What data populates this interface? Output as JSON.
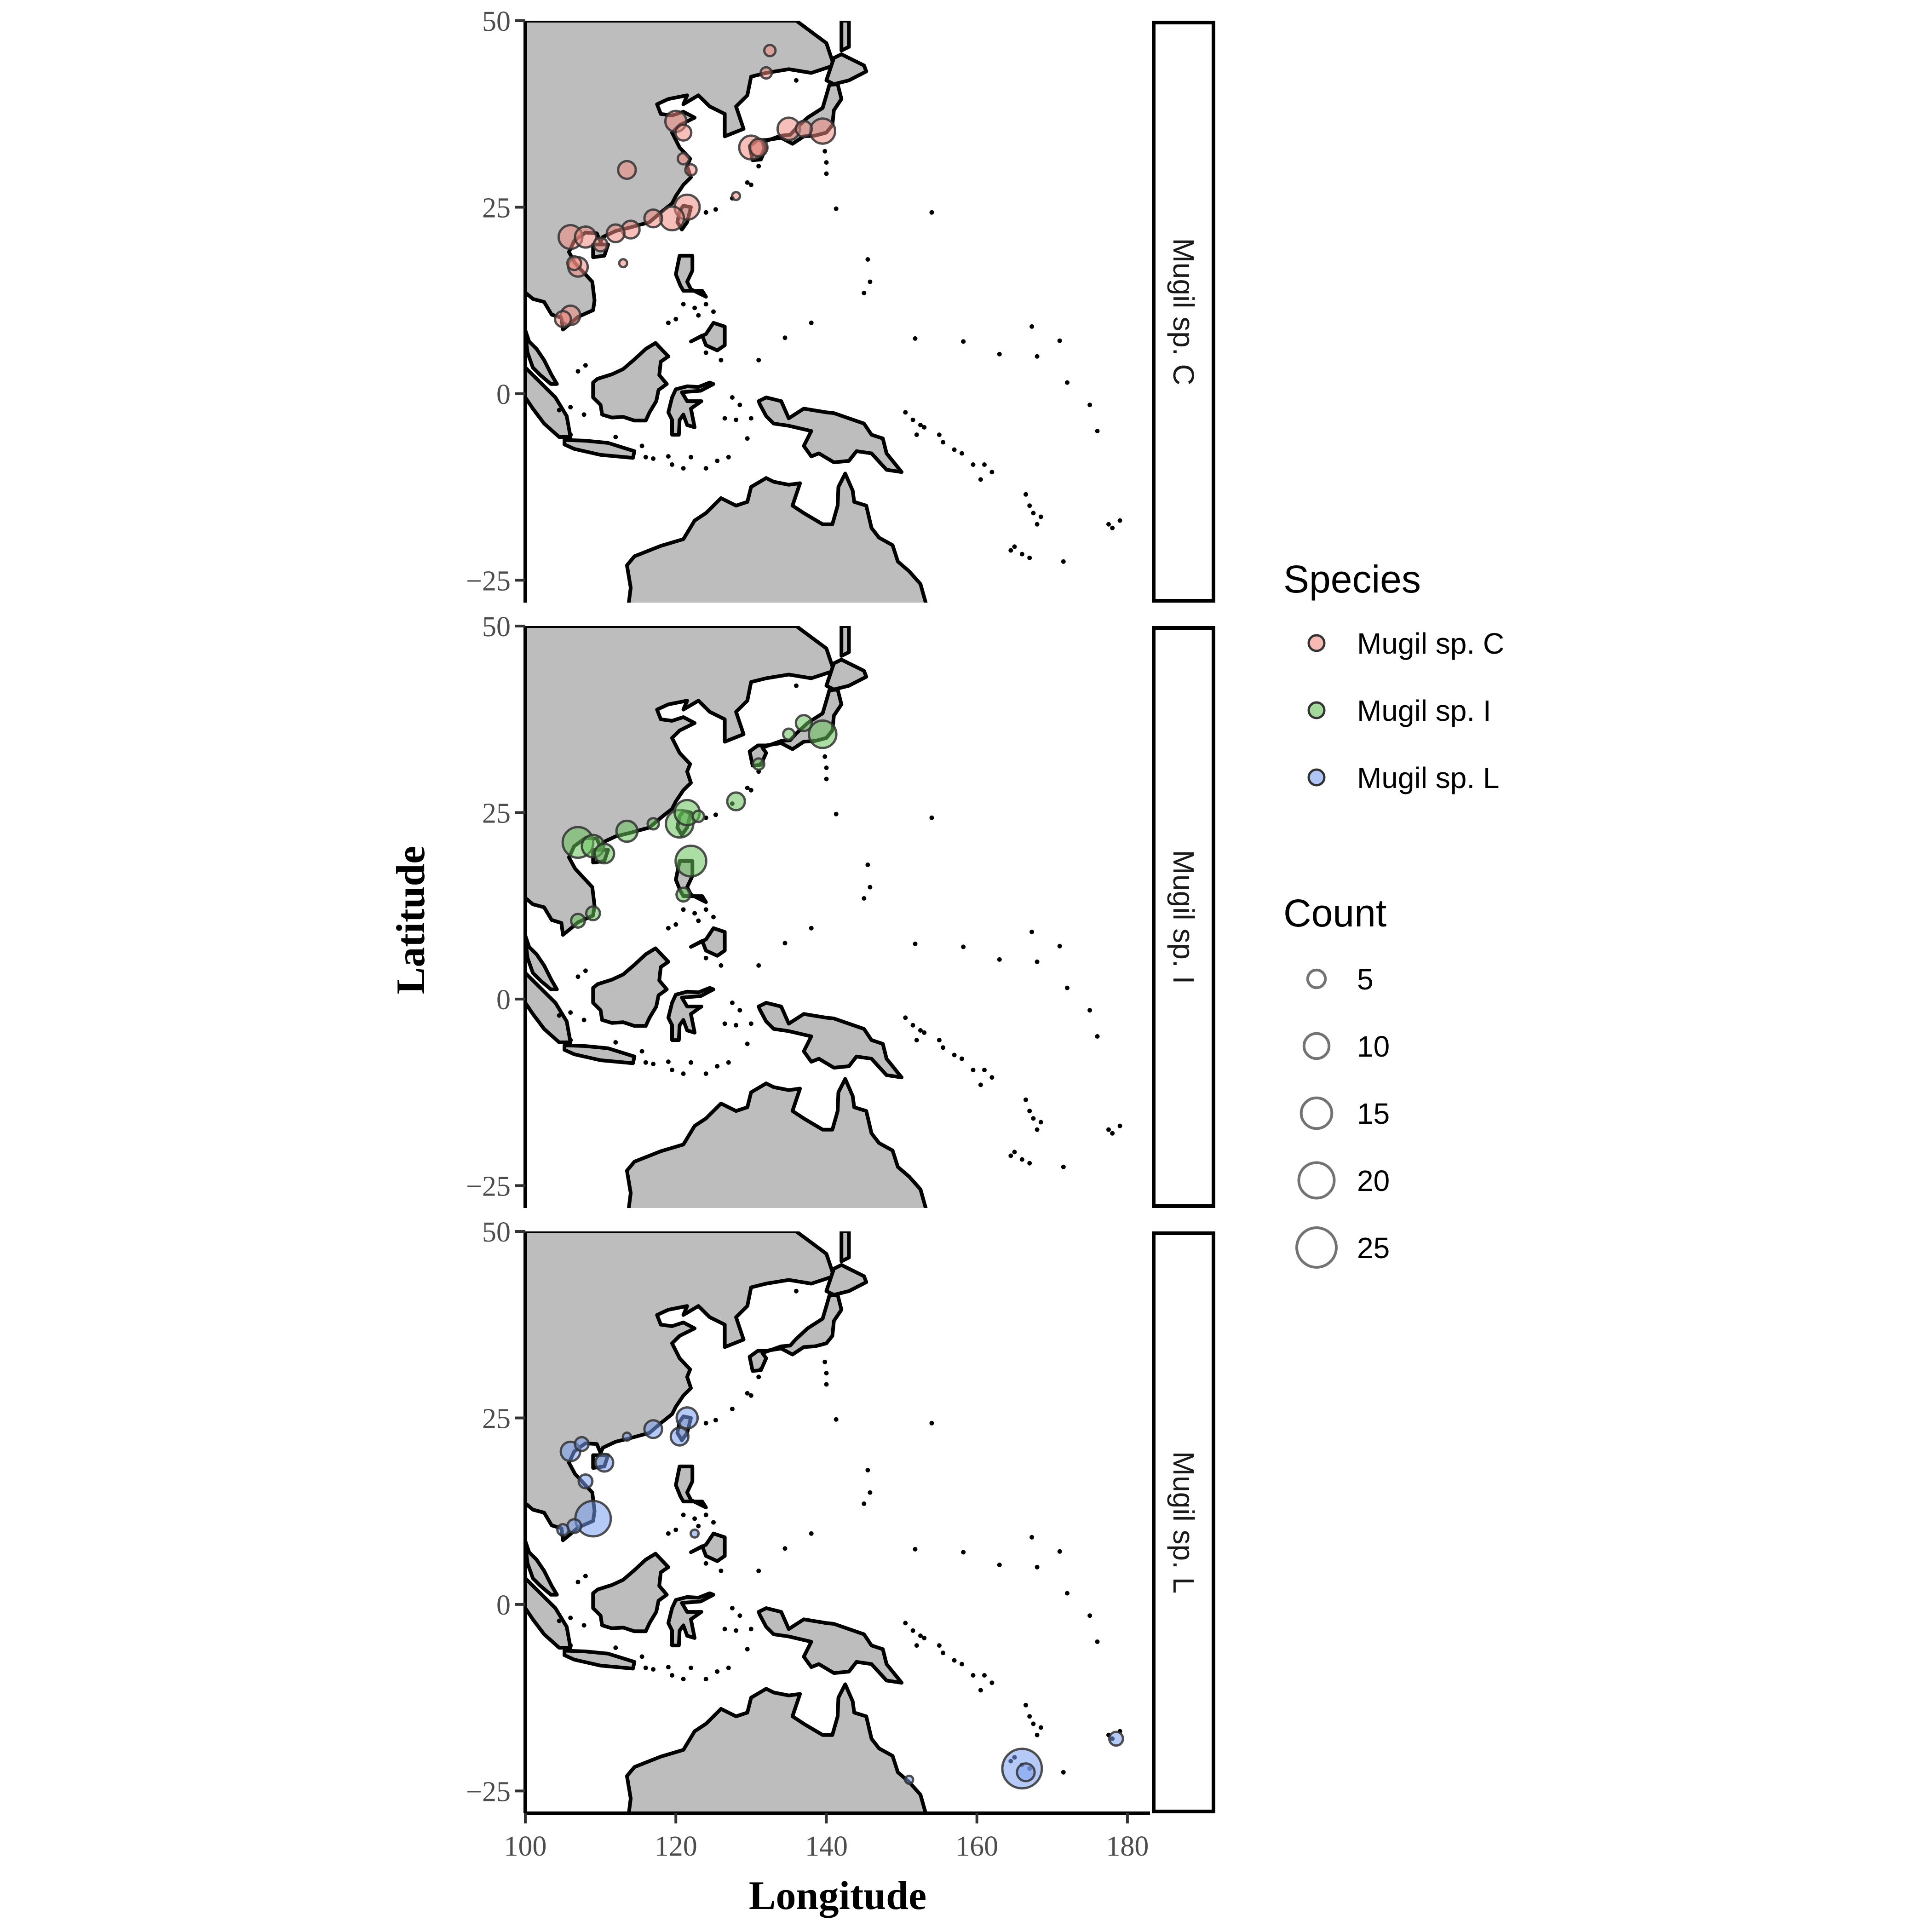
{
  "chart_data": {
    "type": "scatter",
    "xlabel": "Longitude",
    "ylabel": "Latitude",
    "xlim": [
      100,
      183
    ],
    "ylim": [
      -28,
      50
    ],
    "x_ticks": [
      "100",
      "120",
      "140",
      "160",
      "180"
    ],
    "y_ticks": [
      "−25",
      "0",
      "25",
      "50"
    ],
    "x_tick_values": [
      100,
      120,
      140,
      160,
      180
    ],
    "y_tick_values": [
      -25,
      0,
      25,
      50
    ],
    "legend": {
      "species_title": "Species",
      "count_title": "Count",
      "placement": "right",
      "species": [
        {
          "label": "Mugil sp. C",
          "color": "#F08A80"
        },
        {
          "label": "Mugil sp. I",
          "color": "#66C159"
        },
        {
          "label": "Mugil sp. L",
          "color": "#7A9EF0"
        }
      ],
      "count_values": [
        5,
        10,
        15,
        20,
        25
      ],
      "count_labels": [
        "5",
        "10",
        "15",
        "20",
        "25"
      ]
    },
    "panels": [
      {
        "strip": "Mugil sp. C",
        "color": "#F08A80",
        "points": [
          {
            "lon": 132.5,
            "lat": 46,
            "count": 2
          },
          {
            "lon": 132,
            "lat": 43,
            "count": 2
          },
          {
            "lon": 120,
            "lat": 36.5,
            "count": 7
          },
          {
            "lon": 121,
            "lat": 35,
            "count": 4
          },
          {
            "lon": 135,
            "lat": 35.5,
            "count": 8
          },
          {
            "lon": 139.5,
            "lat": 35.2,
            "count": 10
          },
          {
            "lon": 137,
            "lat": 35.5,
            "count": 4
          },
          {
            "lon": 130,
            "lat": 33,
            "count": 9
          },
          {
            "lon": 131,
            "lat": 33,
            "count": 5
          },
          {
            "lon": 121,
            "lat": 31.5,
            "count": 2
          },
          {
            "lon": 122,
            "lat": 30,
            "count": 2
          },
          {
            "lon": 113.5,
            "lat": 30,
            "count": 5
          },
          {
            "lon": 128,
            "lat": 26.5,
            "count": 1
          },
          {
            "lon": 121.5,
            "lat": 25,
            "count": 10
          },
          {
            "lon": 119.5,
            "lat": 23.5,
            "count": 9
          },
          {
            "lon": 117,
            "lat": 23.5,
            "count": 5
          },
          {
            "lon": 114,
            "lat": 22,
            "count": 5
          },
          {
            "lon": 112,
            "lat": 21.5,
            "count": 5
          },
          {
            "lon": 106,
            "lat": 21,
            "count": 9
          },
          {
            "lon": 108,
            "lat": 21,
            "count": 7
          },
          {
            "lon": 110,
            "lat": 20,
            "count": 3
          },
          {
            "lon": 107,
            "lat": 17,
            "count": 6
          },
          {
            "lon": 106.5,
            "lat": 17.5,
            "count": 3
          },
          {
            "lon": 113,
            "lat": 17.5,
            "count": 1
          },
          {
            "lon": 106,
            "lat": 10.5,
            "count": 6
          },
          {
            "lon": 105,
            "lat": 10,
            "count": 4
          }
        ]
      },
      {
        "strip": "Mugil sp. I",
        "color": "#66C159",
        "points": [
          {
            "lon": 139.5,
            "lat": 35.5,
            "count": 12
          },
          {
            "lon": 137,
            "lat": 37,
            "count": 4
          },
          {
            "lon": 135,
            "lat": 35.5,
            "count": 2
          },
          {
            "lon": 131,
            "lat": 31.5,
            "count": 2
          },
          {
            "lon": 128,
            "lat": 26.5,
            "count": 5
          },
          {
            "lon": 121.5,
            "lat": 25,
            "count": 10
          },
          {
            "lon": 120.5,
            "lat": 23.5,
            "count": 12
          },
          {
            "lon": 123,
            "lat": 24.5,
            "count": 2
          },
          {
            "lon": 122,
            "lat": 18.5,
            "count": 15
          },
          {
            "lon": 121,
            "lat": 14,
            "count": 3
          },
          {
            "lon": 113.5,
            "lat": 22.5,
            "count": 7
          },
          {
            "lon": 117,
            "lat": 23.5,
            "count": 2
          },
          {
            "lon": 107,
            "lat": 21,
            "count": 15
          },
          {
            "lon": 109,
            "lat": 20.5,
            "count": 8
          },
          {
            "lon": 110.5,
            "lat": 19.5,
            "count": 6
          },
          {
            "lon": 109,
            "lat": 11.5,
            "count": 3
          },
          {
            "lon": 107,
            "lat": 10.5,
            "count": 3
          }
        ]
      },
      {
        "strip": "Mugil sp. L",
        "color": "#7A9EF0",
        "points": [
          {
            "lon": 121.5,
            "lat": 25,
            "count": 7
          },
          {
            "lon": 120.5,
            "lat": 22.5,
            "count": 5
          },
          {
            "lon": 117,
            "lat": 23.5,
            "count": 5
          },
          {
            "lon": 113.5,
            "lat": 22.5,
            "count": 1
          },
          {
            "lon": 106,
            "lat": 20.5,
            "count": 6
          },
          {
            "lon": 107.5,
            "lat": 21.5,
            "count": 3
          },
          {
            "lon": 110.5,
            "lat": 19,
            "count": 5
          },
          {
            "lon": 108,
            "lat": 16.5,
            "count": 3
          },
          {
            "lon": 109,
            "lat": 11.5,
            "count": 20
          },
          {
            "lon": 106.5,
            "lat": 10.5,
            "count": 3
          },
          {
            "lon": 105,
            "lat": 10,
            "count": 2
          },
          {
            "lon": 122.5,
            "lat": 9.5,
            "count": 1
          },
          {
            "lon": 166,
            "lat": -22,
            "count": 25
          },
          {
            "lon": 166.5,
            "lat": -22.5,
            "count": 5
          },
          {
            "lon": 178.5,
            "lat": -18,
            "count": 3
          },
          {
            "lon": 151,
            "lat": -23.5,
            "count": 1
          }
        ]
      }
    ]
  }
}
